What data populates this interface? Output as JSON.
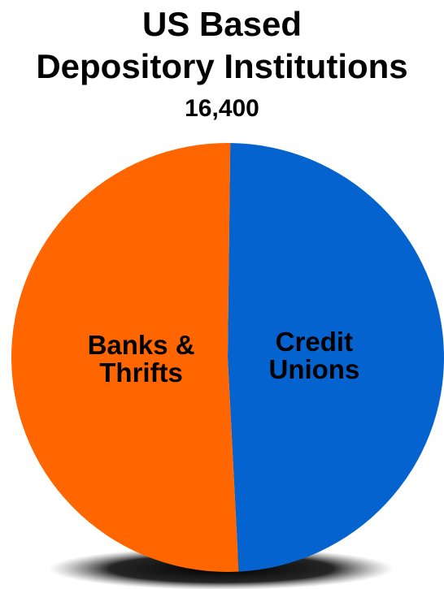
{
  "chart_data": {
    "type": "pie",
    "title_lines": [
      "US Based",
      "Depository Institutions"
    ],
    "subtitle": "16,400",
    "slices": [
      {
        "label_lines": [
          "Credit",
          "Unions"
        ],
        "value": 49,
        "color": "#0563CF"
      },
      {
        "label_lines": [
          "Banks &",
          "Thrifts"
        ],
        "value": 51,
        "color": "#FF6600"
      }
    ]
  }
}
